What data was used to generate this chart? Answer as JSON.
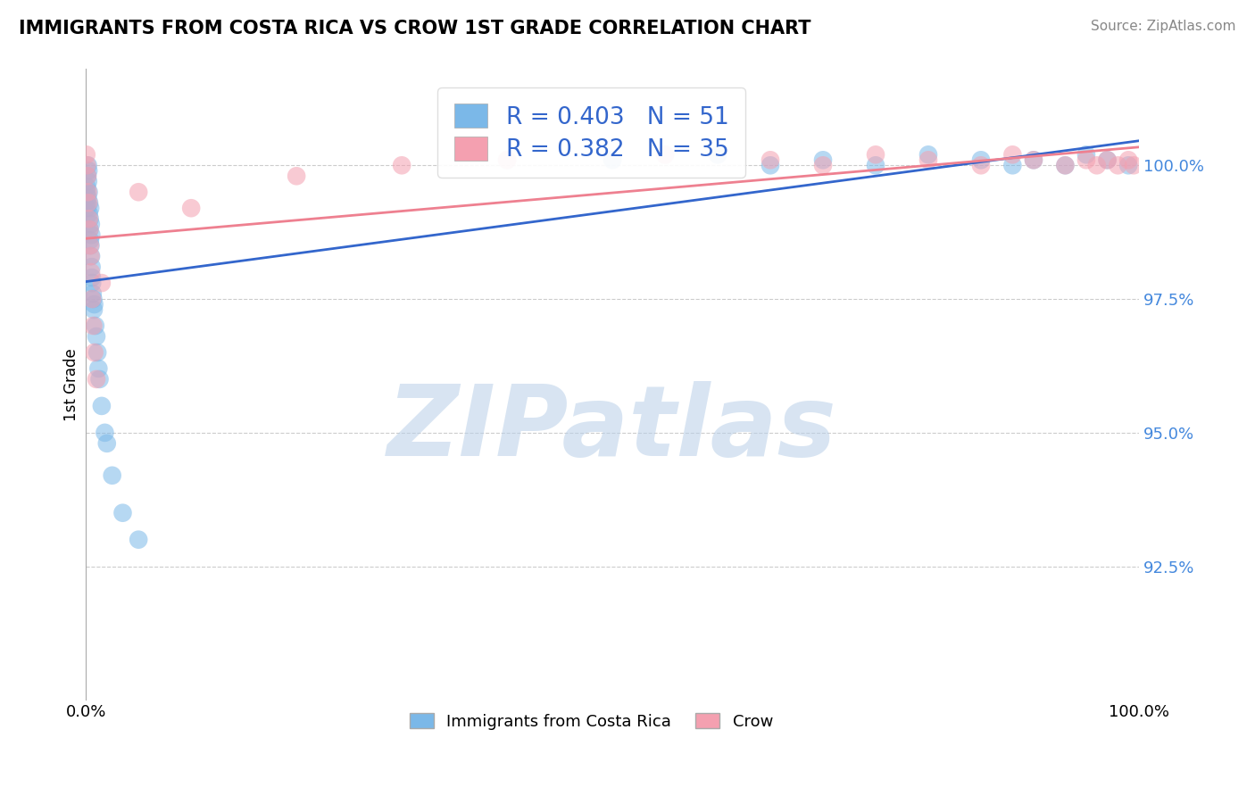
{
  "title": "IMMIGRANTS FROM COSTA RICA VS CROW 1ST GRADE CORRELATION CHART",
  "source_text": "Source: ZipAtlas.com",
  "ylabel": "1st Grade",
  "legend_blue_label": "Immigrants from Costa Rica",
  "legend_pink_label": "Crow",
  "R_blue": 0.403,
  "N_blue": 51,
  "R_pink": 0.382,
  "N_pink": 35,
  "blue_color": "#7bb8e8",
  "pink_color": "#f4a0b0",
  "blue_line_color": "#3366cc",
  "pink_line_color": "#ee8090",
  "watermark": "ZIPatlas",
  "watermark_color_zip": "#b8cfe8",
  "watermark_color_atlas": "#c8a870",
  "xlim": [
    0.0,
    100.0
  ],
  "ylim": [
    90.0,
    101.5
  ],
  "yticks": [
    92.5,
    95.0,
    97.5,
    100.0
  ],
  "blue_x": [
    0.05,
    0.08,
    0.1,
    0.12,
    0.15,
    0.18,
    0.2,
    0.22,
    0.25,
    0.28,
    0.3,
    0.32,
    0.35,
    0.38,
    0.4,
    0.42,
    0.45,
    0.48,
    0.5,
    0.52,
    0.55,
    0.58,
    0.6,
    0.65,
    0.7,
    0.75,
    0.8,
    0.9,
    1.0,
    1.1,
    1.2,
    1.3,
    1.5,
    1.8,
    2.0,
    2.5,
    3.5,
    5.0,
    50.0,
    60.0,
    65.0,
    70.0,
    75.0,
    80.0,
    85.0,
    88.0,
    90.0,
    93.0,
    95.0,
    97.0,
    99.0
  ],
  "blue_y": [
    99.5,
    99.3,
    99.6,
    99.2,
    99.8,
    99.4,
    100.0,
    99.7,
    99.9,
    99.5,
    99.1,
    99.3,
    98.8,
    99.0,
    98.6,
    99.2,
    98.5,
    98.9,
    98.3,
    98.7,
    98.1,
    97.9,
    97.8,
    97.6,
    97.5,
    97.3,
    97.4,
    97.0,
    96.8,
    96.5,
    96.2,
    96.0,
    95.5,
    95.0,
    94.8,
    94.2,
    93.5,
    93.0,
    100.1,
    100.2,
    100.0,
    100.1,
    100.0,
    100.2,
    100.1,
    100.0,
    100.1,
    100.0,
    100.2,
    100.1,
    100.0
  ],
  "pink_x": [
    0.05,
    0.1,
    0.15,
    0.2,
    0.25,
    0.3,
    0.35,
    0.4,
    0.45,
    0.5,
    0.6,
    0.7,
    0.8,
    1.0,
    1.5,
    10.0,
    20.0,
    40.0,
    55.0,
    65.0,
    70.0,
    75.0,
    80.0,
    85.0,
    88.0,
    90.0,
    93.0,
    95.0,
    96.0,
    97.0,
    98.0,
    99.0,
    99.5,
    5.0,
    30.0
  ],
  "pink_y": [
    100.2,
    100.0,
    99.8,
    99.5,
    99.3,
    99.0,
    98.8,
    98.5,
    98.3,
    98.0,
    97.5,
    97.0,
    96.5,
    96.0,
    97.8,
    99.2,
    99.8,
    100.1,
    100.2,
    100.1,
    100.0,
    100.2,
    100.1,
    100.0,
    100.2,
    100.1,
    100.0,
    100.1,
    100.0,
    100.1,
    100.0,
    100.1,
    100.0,
    99.5,
    100.0
  ]
}
